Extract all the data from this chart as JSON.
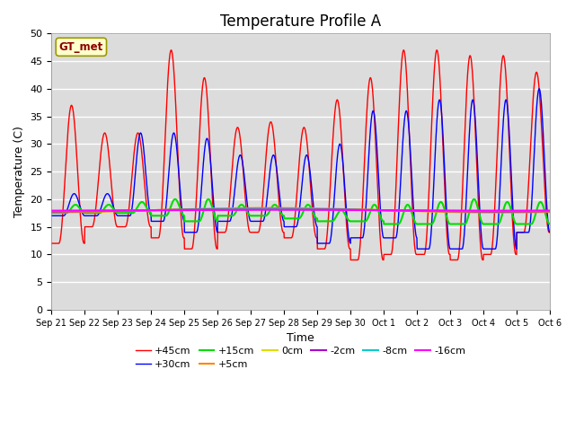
{
  "title": "Temperature Profile A",
  "xlabel": "Time",
  "ylabel": "Temperature (C)",
  "ylim": [
    0,
    50
  ],
  "xlim": [
    0,
    15
  ],
  "x_tick_labels": [
    "Sep 21",
    "Sep 22",
    "Sep 23",
    "Sep 24",
    "Sep 25",
    "Sep 26",
    "Sep 27",
    "Sep 28",
    "Sep 29",
    "Sep 30",
    "Oct 1",
    "Oct 2",
    "Oct 3",
    "Oct 4",
    "Oct 5",
    "Oct 6"
  ],
  "gt_met_label": "GT_met",
  "series_colors": {
    "+45cm": "#ff0000",
    "+30cm": "#0000ff",
    "+15cm": "#00dd00",
    "+5cm": "#ff8800",
    "0cm": "#dddd00",
    "-2cm": "#aa00cc",
    "-8cm": "#00cccc",
    "-16cm": "#ff00ff"
  },
  "legend_entries": [
    "+45cm",
    "+30cm",
    "+15cm",
    "+5cm",
    "0cm",
    "-2cm",
    "-8cm",
    "-16cm"
  ],
  "background_color": "#dcdcdc",
  "title_fontsize": 12,
  "axis_label_fontsize": 9
}
